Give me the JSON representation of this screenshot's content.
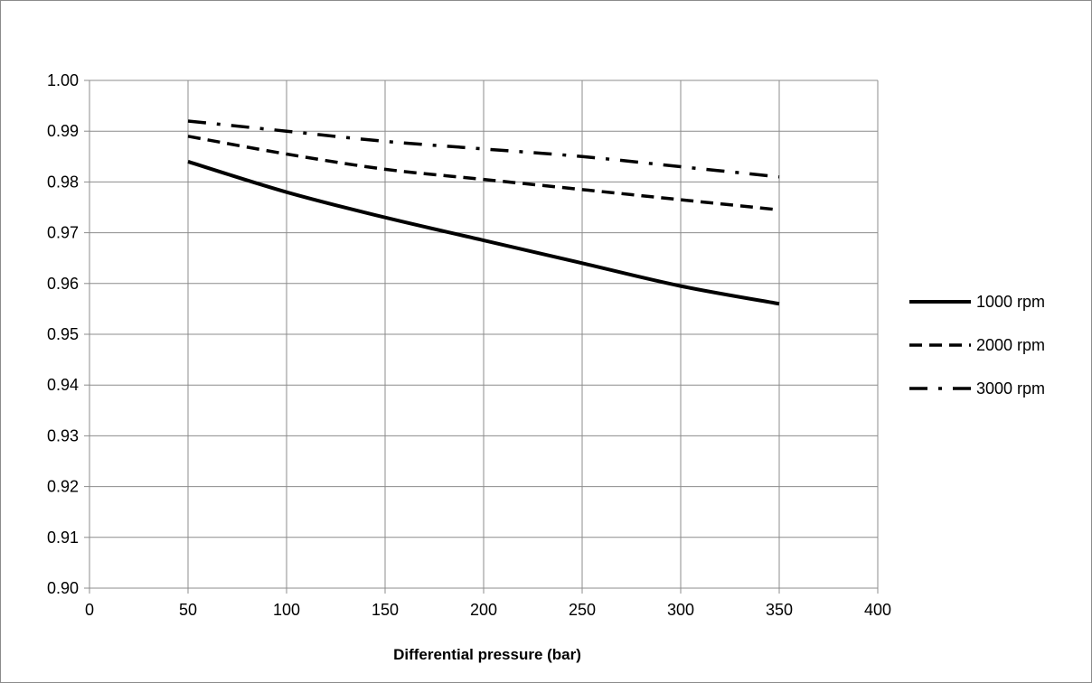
{
  "chart_data": {
    "type": "line",
    "title": "",
    "xlabel": "Differential pressure (bar)",
    "ylabel": "",
    "xlim": [
      0,
      400
    ],
    "ylim": [
      0.9,
      1.0
    ],
    "x_ticks": [
      "0",
      "50",
      "100",
      "150",
      "200",
      "250",
      "300",
      "350",
      "400"
    ],
    "y_ticks": [
      "0.90",
      "0.91",
      "0.92",
      "0.93",
      "0.94",
      "0.95",
      "0.96",
      "0.97",
      "0.98",
      "0.99",
      "1.00"
    ],
    "grid": true,
    "legend_position": "right",
    "series": [
      {
        "name": "1000 rpm",
        "style": "solid",
        "x": [
          50,
          100,
          150,
          200,
          250,
          300,
          350
        ],
        "y": [
          0.984,
          0.978,
          0.973,
          0.9685,
          0.964,
          0.9595,
          0.956
        ]
      },
      {
        "name": "2000 rpm",
        "style": "dashed",
        "x": [
          50,
          100,
          150,
          200,
          250,
          300,
          350
        ],
        "y": [
          0.989,
          0.9855,
          0.9825,
          0.9805,
          0.9785,
          0.9765,
          0.9745
        ]
      },
      {
        "name": "3000 rpm",
        "style": "dash-dot",
        "x": [
          50,
          100,
          150,
          200,
          250,
          300,
          350
        ],
        "y": [
          0.992,
          0.99,
          0.988,
          0.9865,
          0.985,
          0.983,
          0.981
        ]
      }
    ]
  }
}
